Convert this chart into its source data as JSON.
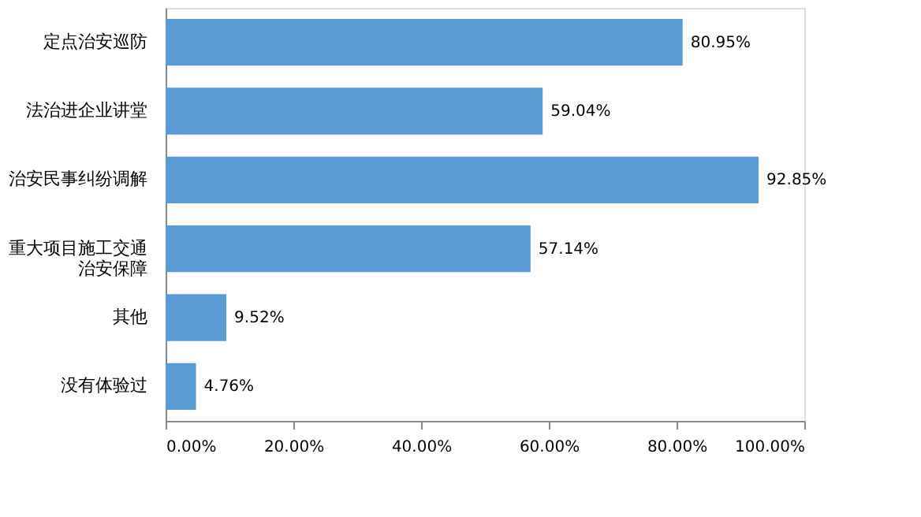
{
  "chart_data": {
    "type": "bar",
    "orientation": "horizontal",
    "categories": [
      "定点治安巡防",
      "法治进企业讲堂",
      "治安民事纠纷调解",
      "重大项目施工交通治安保障",
      "其他",
      "没有体验过"
    ],
    "values": [
      80.95,
      59.04,
      92.85,
      57.14,
      9.52,
      4.76
    ],
    "value_labels": [
      "80.95%",
      "59.04%",
      "92.85%",
      "57.14%",
      "9.52%",
      "4.76%"
    ],
    "color": "#5b9bd5",
    "xlim": [
      0,
      100
    ],
    "xticks": [
      {
        "value": 0,
        "label": "0.00%"
      },
      {
        "value": 20,
        "label": "20.00%"
      },
      {
        "value": 40,
        "label": "40.00%"
      },
      {
        "value": 60,
        "label": "60.00%"
      },
      {
        "value": 80,
        "label": "80.00%"
      },
      {
        "value": 100,
        "label": "100.00%"
      }
    ],
    "grid": false
  }
}
